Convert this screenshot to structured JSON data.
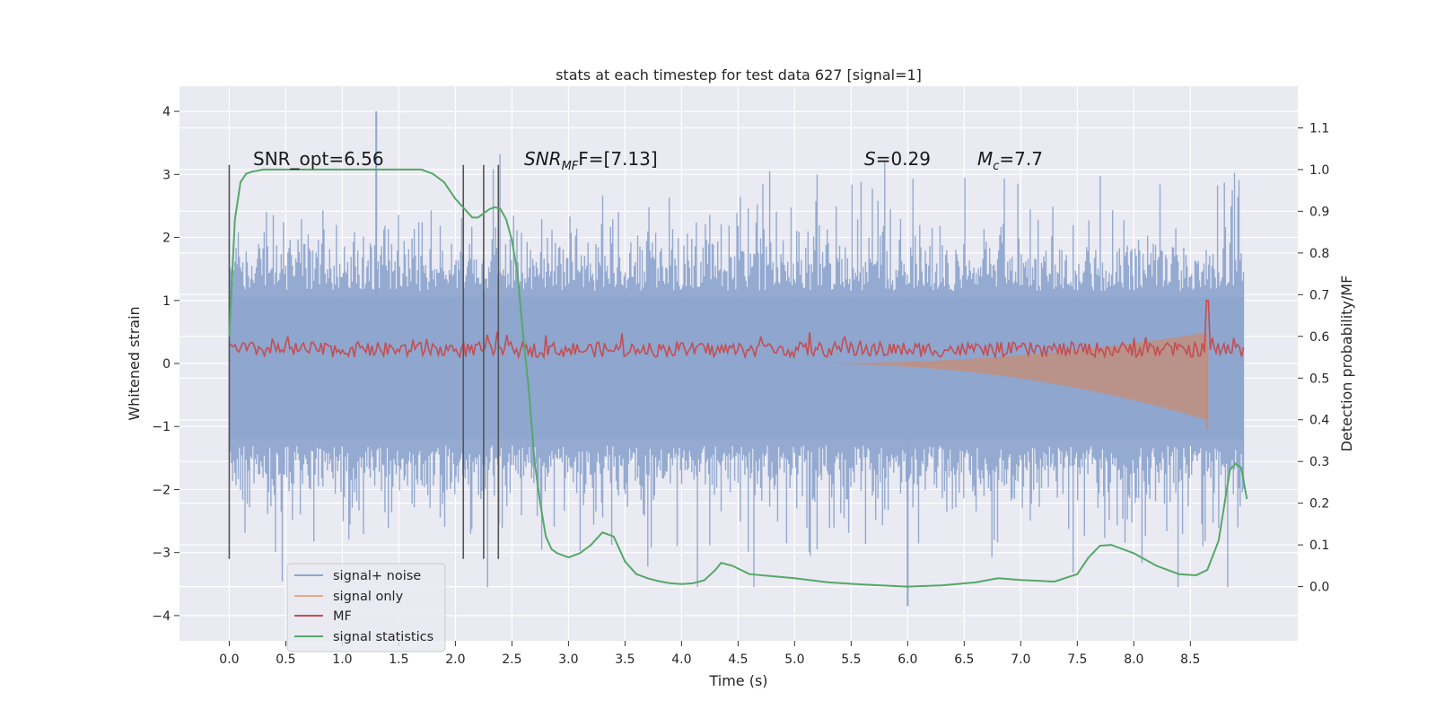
{
  "chart_data": {
    "type": "line",
    "title": "stats at each timestep for test data 627 [signal=1]",
    "xlabel": "Time (s)",
    "ylabel": "Whitened strain",
    "ylabel_right": "Detection probability/MF",
    "xlim": [
      -0.44,
      9.45
    ],
    "ylim": [
      -4.4,
      4.4
    ],
    "ylim_right": [
      -0.13,
      1.2
    ],
    "x_ticks": [
      "0.0",
      "0.5",
      "1.0",
      "1.5",
      "2.0",
      "2.5",
      "3.0",
      "3.5",
      "4.0",
      "4.5",
      "5.0",
      "5.5",
      "6.0",
      "6.5",
      "7.0",
      "7.5",
      "8.0",
      "8.5"
    ],
    "y_ticks": [
      "4",
      "3",
      "2",
      "1",
      "0",
      "−1",
      "−2",
      "−3",
      "−4"
    ],
    "y_ticks_right": [
      "1.1",
      "1.0",
      "0.9",
      "0.8",
      "0.7",
      "0.6",
      "0.5",
      "0.4",
      "0.3",
      "0.2",
      "0.1",
      "0.0"
    ],
    "vertical_markers_s": [
      0.0,
      2.07,
      2.25,
      2.38
    ],
    "annotations": {
      "snr_opt": "SNR_opt=6.56",
      "snr_mf_name": "SNR",
      "snr_mf_sub": "MF",
      "snr_mf_value": "F=[7.13]",
      "s_name": "S",
      "s_value": "=0.29",
      "mc_name": "M",
      "mc_sub": "c",
      "mc_value": "=7.7"
    },
    "series": [
      {
        "name": "signal+ noise",
        "color": "#8fa6cf",
        "kind": "noise band",
        "x_range_s": [
          0.0,
          8.97
        ],
        "typical_range": [
          -2.3,
          2.7
        ],
        "peak_values": [
          4.0,
          -3.85
        ]
      },
      {
        "name": "signal only",
        "color": "#dd8452",
        "kind": "chirp",
        "x_range_s": [
          5.0,
          8.65
        ],
        "end_amplitude": 0.9
      },
      {
        "name": "MF",
        "color": "#c44e52",
        "kind": "matched filter",
        "x_range_s": [
          0.0,
          8.97
        ],
        "baseline": 0.22,
        "peak": {
          "t": 8.65,
          "value": 1.0
        }
      },
      {
        "name": "signal statistics",
        "color": "#55a868",
        "axis": "right",
        "points": [
          [
            0.0,
            0.6
          ],
          [
            0.05,
            0.88
          ],
          [
            0.1,
            0.97
          ],
          [
            0.15,
            0.99
          ],
          [
            0.2,
            0.995
          ],
          [
            0.3,
            1.0
          ],
          [
            0.5,
            1.0
          ],
          [
            1.0,
            1.0
          ],
          [
            1.5,
            1.0
          ],
          [
            1.7,
            1.0
          ],
          [
            1.8,
            0.99
          ],
          [
            1.9,
            0.97
          ],
          [
            2.0,
            0.93
          ],
          [
            2.1,
            0.9
          ],
          [
            2.15,
            0.885
          ],
          [
            2.2,
            0.885
          ],
          [
            2.25,
            0.895
          ],
          [
            2.3,
            0.905
          ],
          [
            2.35,
            0.91
          ],
          [
            2.4,
            0.905
          ],
          [
            2.45,
            0.88
          ],
          [
            2.5,
            0.83
          ],
          [
            2.55,
            0.75
          ],
          [
            2.6,
            0.6
          ],
          [
            2.65,
            0.47
          ],
          [
            2.7,
            0.3
          ],
          [
            2.75,
            0.2
          ],
          [
            2.8,
            0.12
          ],
          [
            2.85,
            0.09
          ],
          [
            2.9,
            0.08
          ],
          [
            3.0,
            0.07
          ],
          [
            3.1,
            0.08
          ],
          [
            3.2,
            0.1
          ],
          [
            3.3,
            0.13
          ],
          [
            3.4,
            0.12
          ],
          [
            3.5,
            0.06
          ],
          [
            3.6,
            0.03
          ],
          [
            3.7,
            0.02
          ],
          [
            3.8,
            0.013
          ],
          [
            3.9,
            0.008
          ],
          [
            4.0,
            0.006
          ],
          [
            4.1,
            0.008
          ],
          [
            4.2,
            0.015
          ],
          [
            4.3,
            0.04
          ],
          [
            4.35,
            0.057
          ],
          [
            4.45,
            0.05
          ],
          [
            4.6,
            0.03
          ],
          [
            4.8,
            0.025
          ],
          [
            5.0,
            0.02
          ],
          [
            5.3,
            0.01
          ],
          [
            5.6,
            0.005
          ],
          [
            6.0,
            0.0
          ],
          [
            6.3,
            0.003
          ],
          [
            6.6,
            0.01
          ],
          [
            6.8,
            0.02
          ],
          [
            7.0,
            0.016
          ],
          [
            7.3,
            0.012
          ],
          [
            7.5,
            0.03
          ],
          [
            7.6,
            0.07
          ],
          [
            7.7,
            0.098
          ],
          [
            7.8,
            0.1
          ],
          [
            8.0,
            0.08
          ],
          [
            8.2,
            0.05
          ],
          [
            8.4,
            0.03
          ],
          [
            8.55,
            0.027
          ],
          [
            8.65,
            0.04
          ],
          [
            8.75,
            0.11
          ],
          [
            8.85,
            0.28
          ],
          [
            8.9,
            0.295
          ],
          [
            8.95,
            0.285
          ],
          [
            9.0,
            0.21
          ]
        ]
      }
    ],
    "legend": {
      "location": "lower-left",
      "labels": [
        "signal+ noise",
        "signal only",
        "MF",
        "signal statistics"
      ]
    }
  }
}
